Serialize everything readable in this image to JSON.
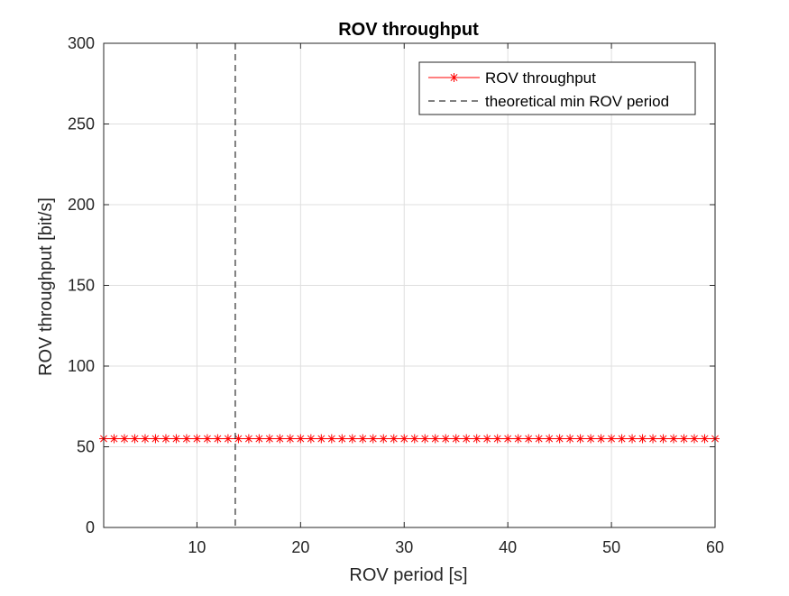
{
  "chart_data": {
    "type": "line",
    "title": "ROV throughput",
    "xlabel": "ROV period [s]",
    "ylabel": "ROV throughput [bit/s]",
    "xlim": [
      1,
      60
    ],
    "ylim": [
      0,
      300
    ],
    "xticks": [
      10,
      20,
      30,
      40,
      50,
      60
    ],
    "yticks": [
      0,
      50,
      100,
      150,
      200,
      250,
      300
    ],
    "grid": true,
    "legend_position": "top-right",
    "series": [
      {
        "name": "ROV throughput",
        "color": "#ff0000",
        "line_style": "solid",
        "marker": "asterisk",
        "x": [
          1,
          2,
          3,
          4,
          5,
          6,
          7,
          8,
          9,
          10,
          11,
          12,
          13,
          14,
          15,
          16,
          17,
          18,
          19,
          20,
          21,
          22,
          23,
          24,
          25,
          26,
          27,
          28,
          29,
          30,
          31,
          32,
          33,
          34,
          35,
          36,
          37,
          38,
          39,
          40,
          41,
          42,
          43,
          44,
          45,
          46,
          47,
          48,
          49,
          50,
          51,
          52,
          53,
          54,
          55,
          56,
          57,
          58,
          59,
          60
        ],
        "y": [
          55,
          55,
          55,
          55,
          55,
          55,
          55,
          55,
          55,
          55,
          55,
          55,
          55,
          55,
          55,
          55,
          55,
          55,
          55,
          55,
          55,
          55,
          55,
          55,
          55,
          55,
          55,
          55,
          55,
          55,
          55,
          55,
          55,
          55,
          55,
          55,
          55,
          55,
          55,
          55,
          55,
          55,
          55,
          55,
          55,
          55,
          55,
          55,
          55,
          55,
          55,
          55,
          55,
          55,
          55,
          55,
          55,
          55,
          55,
          55
        ]
      },
      {
        "name": "theoretical min ROV period",
        "color": "#000000",
        "line_style": "dashed",
        "type": "vertical-line",
        "x": 13.7
      }
    ]
  }
}
